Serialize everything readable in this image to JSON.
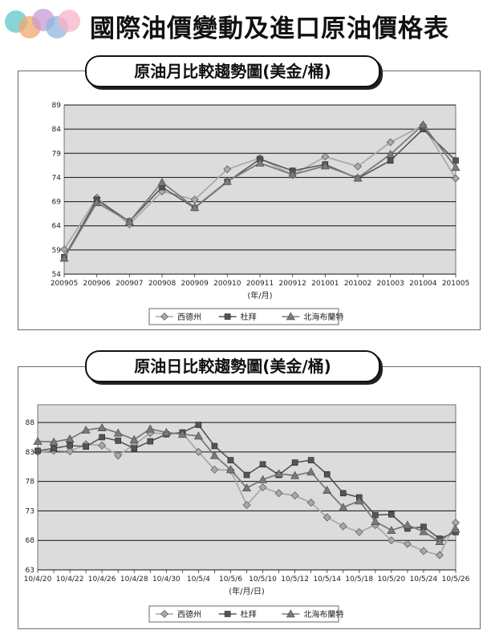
{
  "header": {
    "title": "國際油價變動及進口原油價格表",
    "logo_colors": [
      "#5fc7c9",
      "#f2a86b",
      "#c79bd1",
      "#f7b3c8",
      "#8fb7e0"
    ]
  },
  "colors": {
    "plot_bg": "#dcdcdc",
    "wti": "#a9a9a9",
    "dubai": "#555555",
    "brent": "#7a7a7a"
  },
  "chart_data": [
    {
      "type": "line",
      "title": "原油月比較趨勢圖(美金/桶)",
      "xlabel": "(年/月)",
      "ylabel": "",
      "categories": [
        "200905",
        "200906",
        "200907",
        "200908",
        "200909",
        "200910",
        "200911",
        "200912",
        "201001",
        "201002",
        "201003",
        "201004",
        "201005"
      ],
      "ylim": [
        54,
        89
      ],
      "yticks": [
        54,
        59,
        64,
        69,
        74,
        79,
        84,
        89
      ],
      "grid": true,
      "legend": "bottom",
      "series": [
        {
          "name": "西德州",
          "marker": "diamond",
          "values": [
            59.1,
            69.8,
            64.3,
            71.1,
            69.4,
            75.7,
            78.0,
            74.5,
            78.3,
            76.3,
            81.3,
            84.8,
            73.8
          ]
        },
        {
          "name": "杜拜",
          "marker": "square",
          "values": [
            57.5,
            69.4,
            64.9,
            72.0,
            67.7,
            73.1,
            77.8,
            75.4,
            76.7,
            73.8,
            77.5,
            84.0,
            77.5
          ]
        },
        {
          "name": "北海布蘭特",
          "marker": "triangle",
          "values": [
            57.3,
            68.8,
            64.9,
            73.0,
            67.8,
            73.2,
            77.0,
            74.6,
            76.4,
            73.9,
            78.8,
            84.9,
            76.1
          ]
        }
      ]
    },
    {
      "type": "line",
      "title": "原油日比較趨勢圖(美金/桶)",
      "xlabel": "(年/月/日)",
      "ylabel": "",
      "categories": [
        "10/4/20",
        "",
        "10/4/22",
        "",
        "10/4/26",
        "",
        "10/4/28",
        "",
        "10/4/30",
        "",
        "10/5/4",
        "",
        "10/5/6",
        "",
        "10/5/10",
        "",
        "10/5/12",
        "",
        "10/5/14",
        "",
        "10/5/18",
        "",
        "10/5/20",
        "",
        "10/5/24",
        "",
        "10/5/26"
      ],
      "ylim": [
        63,
        91
      ],
      "yticks": [
        63,
        68,
        73,
        78,
        83,
        88
      ],
      "grid": true,
      "legend": "bottom",
      "series": [
        {
          "name": "西德州",
          "marker": "diamond",
          "values": [
            83.0,
            83.2,
            83.1,
            84.3,
            84.1,
            82.4,
            84.2,
            86.2,
            86.1,
            86.2,
            83.0,
            80.0,
            79.9,
            74.0,
            77.0,
            76.0,
            75.6,
            74.4,
            71.9,
            70.4,
            69.4,
            70.6,
            68.0,
            67.4,
            66.2,
            65.5,
            71.0
          ]
        },
        {
          "name": "杜拜",
          "marker": "square",
          "values": [
            83.2,
            83.6,
            84.1,
            83.9,
            85.5,
            84.9,
            83.6,
            84.8,
            86.0,
            86.3,
            87.6,
            84.0,
            81.6,
            79.1,
            80.9,
            79.1,
            81.2,
            81.6,
            79.2,
            76.0,
            75.3,
            72.3,
            72.4,
            70.0,
            70.3,
            68.3,
            69.4
          ]
        },
        {
          "name": "北海布蘭特",
          "marker": "triangle",
          "values": [
            84.8,
            84.7,
            85.2,
            86.7,
            87.1,
            86.2,
            85.1,
            86.9,
            86.3,
            86.0,
            85.7,
            82.4,
            80.0,
            76.9,
            78.3,
            79.3,
            79.0,
            79.6,
            76.5,
            73.6,
            74.7,
            71.2,
            69.7,
            70.6,
            69.5,
            67.8,
            69.9
          ]
        }
      ]
    }
  ]
}
